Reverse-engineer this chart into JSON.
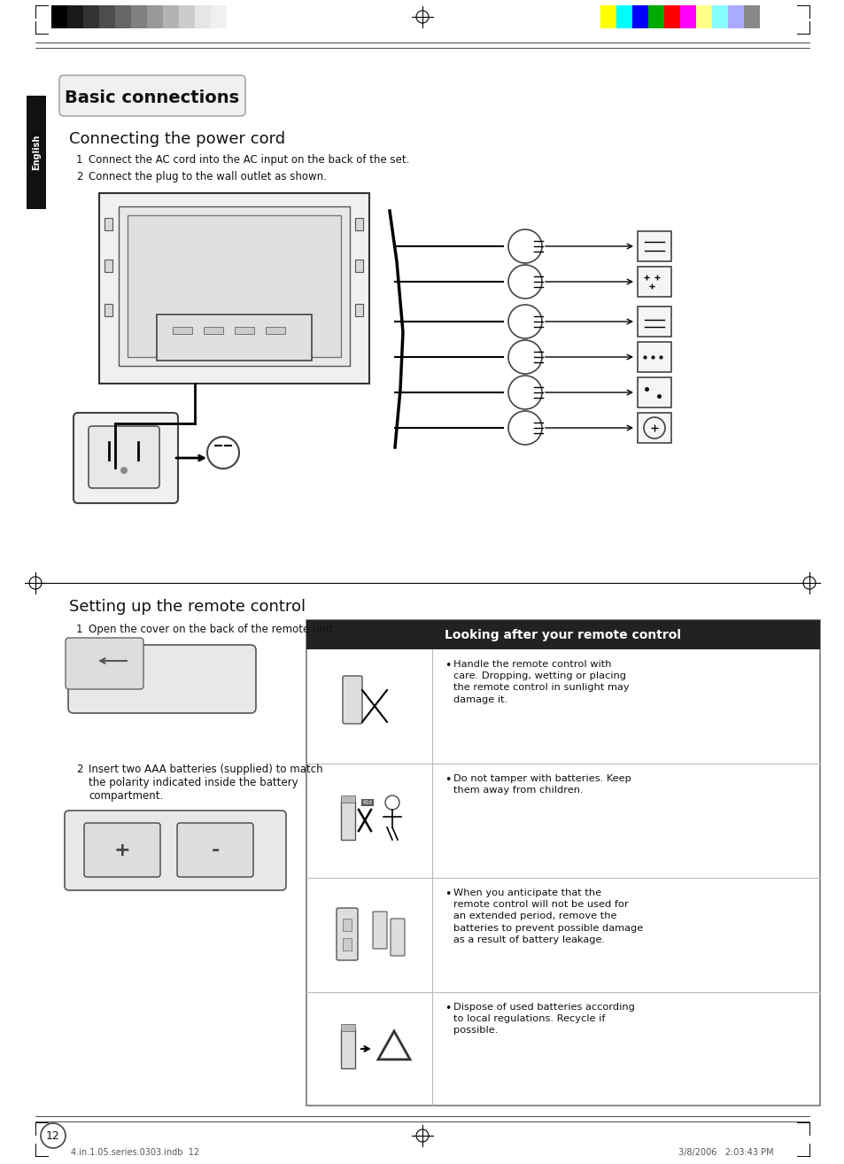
{
  "bg_color": "#ffffff",
  "title_badge": "Basic connections",
  "section1_title": "Connecting the power cord",
  "section1_items": [
    "Connect the AC cord into the AC input on the back of the set.",
    "Connect the plug to the wall outlet as shown."
  ],
  "section2_title": "Setting up the remote control",
  "section2_item1": "Open the cover on the back of the remote unit.",
  "section2_item2": "Insert two AAA batteries (supplied) to match\nthe polarity indicated inside the battery\ncompartment.",
  "box_title": "Looking after your remote control",
  "box_items": [
    "Handle the remote control with\ncare. Dropping, wetting or placing\nthe remote control in sunlight may\ndamage it.",
    "Do not tamper with batteries. Keep\nthem away from children.",
    "When you anticipate that the\nremote control will not be used for\nan extended period, remove the\nbatteries to prevent possible damage\nas a result of battery leakage.",
    "Dispose of used batteries according\nto local regulations. Recycle if\npossible."
  ],
  "english_label": "English",
  "page_number": "12",
  "footer_left": "4.in.1.05.series.0303.indb  12",
  "footer_right": "3/8/2006   2:03:43 PM",
  "top_grayscale": [
    "#000000",
    "#1a1a1a",
    "#333333",
    "#4d4d4d",
    "#666666",
    "#808080",
    "#999999",
    "#b3b3b3",
    "#cccccc",
    "#e6e6e6",
    "#f0f0f0",
    "#ffffff"
  ],
  "top_colors": [
    "#ffff00",
    "#00ffff",
    "#0000ff",
    "#00aa00",
    "#ff0000",
    "#ff00ff",
    "#ffff88",
    "#88ffff",
    "#aaaaff",
    "#888888"
  ]
}
